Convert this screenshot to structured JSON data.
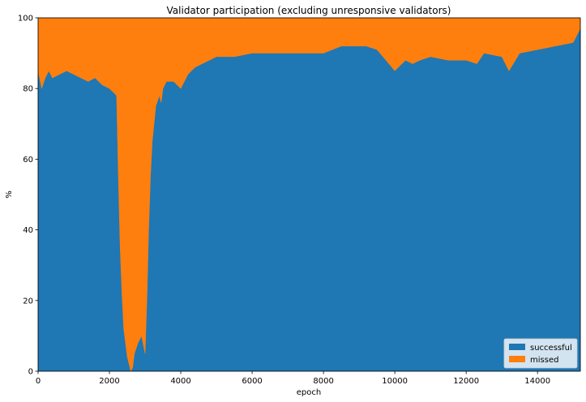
{
  "chart_data": {
    "type": "area",
    "stacked": true,
    "title": "Validator participation (excluding unresponsive validators)",
    "xlabel": "epoch",
    "ylabel": "%",
    "xlim": [
      0,
      15200
    ],
    "ylim": [
      0,
      100
    ],
    "xticks": [
      0,
      2000,
      4000,
      6000,
      8000,
      10000,
      12000,
      14000
    ],
    "yticks": [
      0,
      20,
      40,
      60,
      80,
      100
    ],
    "xtick_labels": [
      "0",
      "2000",
      "4000",
      "6000",
      "8000",
      "10000",
      "12000",
      "14000"
    ],
    "ytick_labels": [
      "0",
      "20",
      "40",
      "60",
      "80",
      "100"
    ],
    "legend_position": "lower-right",
    "x": [
      0,
      100,
      200,
      300,
      400,
      600,
      800,
      1000,
      1200,
      1400,
      1600,
      1800,
      2000,
      2100,
      2200,
      2250,
      2300,
      2350,
      2400,
      2450,
      2500,
      2550,
      2600,
      2650,
      2700,
      2800,
      2900,
      3000,
      3050,
      3100,
      3150,
      3200,
      3300,
      3400,
      3450,
      3500,
      3600,
      3800,
      4000,
      4200,
      4400,
      4600,
      4800,
      5000,
      5500,
      6000,
      6500,
      7000,
      7500,
      8000,
      8500,
      9000,
      9200,
      9500,
      10000,
      10300,
      10500,
      10700,
      11000,
      11500,
      12000,
      12300,
      12500,
      13000,
      13200,
      13500,
      14000,
      14500,
      15000,
      15200
    ],
    "series": [
      {
        "name": "successful",
        "color": "#1f77b4",
        "values": [
          85,
          80,
          83,
          85,
          83,
          84,
          85,
          84,
          83,
          82,
          83,
          81,
          80,
          79,
          78,
          55,
          35,
          22,
          12,
          8,
          4,
          2,
          0,
          1,
          5,
          8,
          10,
          5,
          20,
          40,
          55,
          65,
          75,
          78,
          76,
          80,
          82,
          82,
          80,
          84,
          86,
          87,
          88,
          89,
          89,
          90,
          90,
          90,
          90,
          90,
          92,
          92,
          92,
          91,
          85,
          88,
          87,
          88,
          89,
          88,
          88,
          87,
          90,
          89,
          85,
          90,
          91,
          92,
          93,
          97
        ]
      },
      {
        "name": "missed",
        "color": "#ff7f0e",
        "values": [
          15,
          20,
          17,
          15,
          17,
          16,
          15,
          16,
          17,
          18,
          17,
          19,
          20,
          21,
          22,
          45,
          65,
          78,
          88,
          92,
          96,
          98,
          100,
          99,
          95,
          92,
          90,
          95,
          80,
          60,
          45,
          35,
          25,
          22,
          24,
          20,
          18,
          18,
          20,
          16,
          14,
          13,
          12,
          11,
          11,
          10,
          10,
          10,
          10,
          10,
          8,
          8,
          8,
          9,
          15,
          12,
          13,
          12,
          11,
          12,
          12,
          13,
          10,
          11,
          15,
          10,
          9,
          8,
          7,
          3
        ]
      }
    ]
  }
}
